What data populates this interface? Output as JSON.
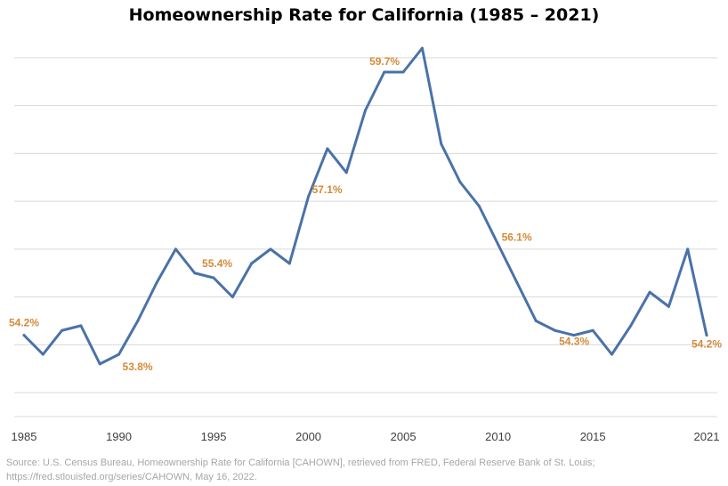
{
  "chart_data": {
    "type": "line",
    "title": "Homeownership Rate for California (1985 – 2021)",
    "xlabel": "",
    "ylabel": "",
    "x": [
      1985,
      1986,
      1987,
      1988,
      1989,
      1990,
      1991,
      1992,
      1993,
      1994,
      1995,
      1996,
      1997,
      1998,
      1999,
      2000,
      2001,
      2002,
      2003,
      2004,
      2005,
      2006,
      2007,
      2008,
      2009,
      2010,
      2011,
      2012,
      2013,
      2014,
      2015,
      2016,
      2017,
      2018,
      2019,
      2020,
      2021
    ],
    "series": [
      {
        "color": "#4a72a8",
        "values": [
          54.2,
          53.8,
          54.3,
          54.4,
          53.6,
          53.8,
          54.5,
          55.3,
          56.0,
          55.5,
          55.4,
          55.0,
          55.7,
          56.0,
          55.7,
          57.1,
          58.1,
          57.6,
          58.9,
          59.7,
          59.7,
          60.2,
          58.2,
          57.4,
          56.9,
          56.1,
          55.3,
          54.5,
          54.3,
          54.2,
          54.3,
          53.8,
          54.4,
          55.1,
          54.8,
          56.0,
          54.2
        ]
      }
    ],
    "xticks": [
      "1985",
      "1990",
      "1995",
      "2000",
      "2005",
      "2010",
      "2015",
      "2021"
    ],
    "ylim": [
      52.5,
      60.5
    ],
    "grid": true,
    "annotation_color": "#d58a3a",
    "annotations": [
      {
        "x": 1985,
        "y": 54.2,
        "text": "54.2%"
      },
      {
        "x": 1990,
        "y": 53.8,
        "text": "53.8%"
      },
      {
        "x": 1995,
        "y": 55.4,
        "text": "55.4%"
      },
      {
        "x": 2000,
        "y": 57.1,
        "text": "57.1%"
      },
      {
        "x": 2005,
        "y": 59.7,
        "text": "59.7%"
      },
      {
        "x": 2010,
        "y": 56.1,
        "text": "56.1%"
      },
      {
        "x": 2015,
        "y": 54.3,
        "text": "54.3%"
      },
      {
        "x": 2021,
        "y": 54.2,
        "text": "54.2%"
      }
    ]
  },
  "source": {
    "line1": "Source: U.S. Census Bureau, Homeownership Rate for California [CAHOWN], retrieved from FRED, Federal Reserve Bank of St. Louis;",
    "line2": "https://fred.stlouisfed.org/series/CAHOWN, May 16, 2022."
  }
}
